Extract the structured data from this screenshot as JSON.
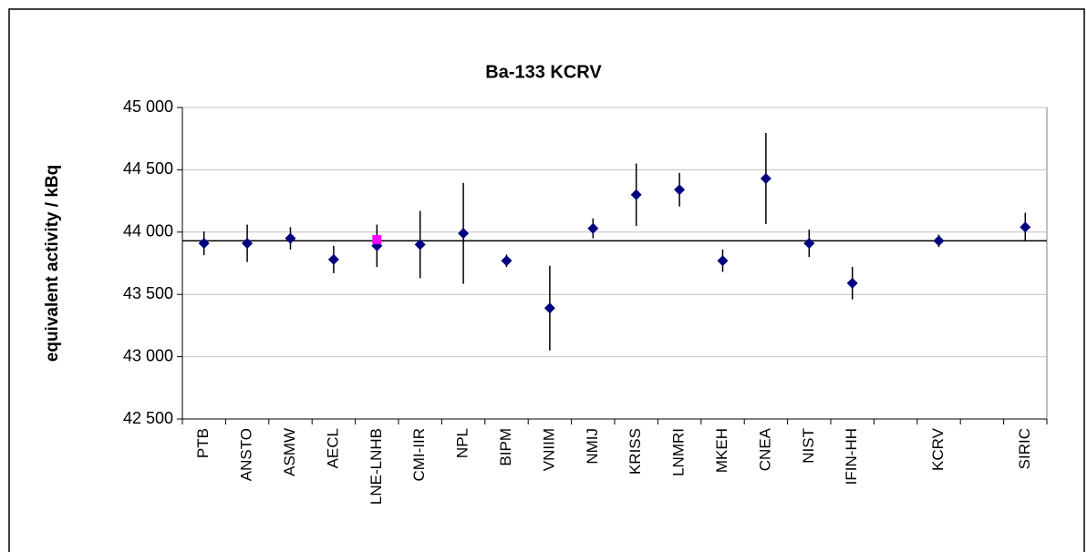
{
  "chart_data": {
    "type": "errorbar",
    "title": "Ba-133 KCRV",
    "ylabel": "equivalent activity / kBq",
    "categories": [
      "PTB",
      "ANSTO",
      "ASMW",
      "AECL",
      "LNE-LNHB",
      "CMI-IIR",
      "NPL",
      "BIPM",
      "VNIIM",
      "NMIJ",
      "KRISS",
      "LNMRI",
      "MKEH",
      "CNEA",
      "NIST",
      "IFIN-HH",
      null,
      "KCRV",
      null,
      "SIRIC"
    ],
    "series": [
      {
        "color": "#000080",
        "marker": "diamond",
        "values": [
          43910,
          43910,
          43950,
          43780,
          43890,
          43900,
          43990,
          43770,
          43390,
          44030,
          44300,
          44340,
          43770,
          44430,
          43910,
          43590,
          null,
          43930,
          null,
          44040
        ],
        "errors": [
          95,
          150,
          90,
          110,
          170,
          270,
          405,
          50,
          340,
          80,
          250,
          135,
          90,
          365,
          110,
          130,
          null,
          50,
          null,
          115
        ]
      },
      {
        "color": "#ff00ff",
        "marker": "square",
        "values": [
          null,
          null,
          null,
          null,
          43940,
          null,
          null,
          null,
          null,
          null,
          null,
          null,
          null,
          null,
          null,
          null,
          null,
          null,
          null,
          null
        ]
      }
    ],
    "reference_line": 43930,
    "ylim": [
      42500,
      45000
    ],
    "yticks": [
      {
        "value": 42500,
        "label": "42 500"
      },
      {
        "value": 43000,
        "label": "43 000"
      },
      {
        "value": 43500,
        "label": "43 500"
      },
      {
        "value": 44000,
        "label": "44 000"
      },
      {
        "value": 44500,
        "label": "44 500"
      },
      {
        "value": 45000,
        "label": "45 000"
      }
    ],
    "grid": true
  }
}
